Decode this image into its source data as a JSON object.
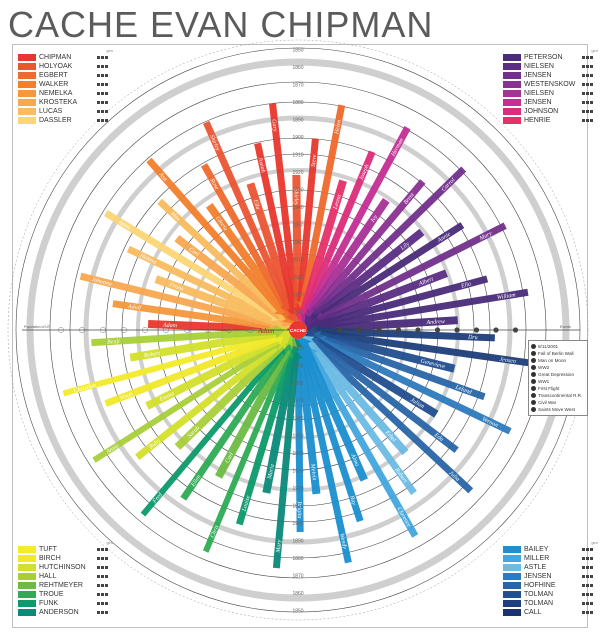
{
  "title": "CACHE EVAN CHIPMAN",
  "center_label": "CACHE",
  "center": {
    "ancestor_1": "Adam",
    "ancestor_2": "Dru"
  },
  "legend_header": "gen",
  "legend_tl": [
    {
      "name": "CHIPMAN",
      "color": "#e8372e"
    },
    {
      "name": "HOLYOAK",
      "color": "#ea5532"
    },
    {
      "name": "EGBERT",
      "color": "#ef6a2e"
    },
    {
      "name": "WALKER",
      "color": "#f37f2d"
    },
    {
      "name": "NEMELKA",
      "color": "#f5973c"
    },
    {
      "name": "KROSTEKA",
      "color": "#f8a851"
    },
    {
      "name": "LUCAS",
      "color": "#f9bc5f"
    },
    {
      "name": "DASSLER",
      "color": "#fcd576"
    }
  ],
  "legend_tr": [
    {
      "name": "PETERSON",
      "color": "#4a2c7a"
    },
    {
      "name": "NIELSEN",
      "color": "#5b2e84"
    },
    {
      "name": "JENSEN",
      "color": "#72318c"
    },
    {
      "name": "WESTENSKOW",
      "color": "#8a3192"
    },
    {
      "name": "NIELSEN",
      "color": "#a83196"
    },
    {
      "name": "JENSEN",
      "color": "#c42f94"
    },
    {
      "name": "JOHNSON",
      "color": "#dc2d7c"
    },
    {
      "name": "HENRIE",
      "color": "#e6306a"
    }
  ],
  "legend_bl": [
    {
      "name": "TUFT",
      "color": "#f4ec2a"
    },
    {
      "name": "BIRCH",
      "color": "#f1e82a"
    },
    {
      "name": "HUTCHINSON",
      "color": "#d3e02b"
    },
    {
      "name": "HALL",
      "color": "#a8cf38"
    },
    {
      "name": "REHTMEYER",
      "color": "#6dbb44"
    },
    {
      "name": "TROUE",
      "color": "#2eab54"
    },
    {
      "name": "FUNK",
      "color": "#0b9a6b"
    },
    {
      "name": "ANDERSON",
      "color": "#0b8a7a"
    }
  ],
  "legend_br": [
    {
      "name": "BAILEY",
      "color": "#1b8fcf"
    },
    {
      "name": "MILLER",
      "color": "#42a7df"
    },
    {
      "name": "ASTLE",
      "color": "#6cbbe4"
    },
    {
      "name": "JENSEN",
      "color": "#2d7bbd"
    },
    {
      "name": "HOFHINE",
      "color": "#2966a8"
    },
    {
      "name": "TOLMAN",
      "color": "#214f8f"
    },
    {
      "name": "TOLMAN",
      "color": "#1e3f7b"
    },
    {
      "name": "CALL",
      "color": "#1d3270"
    }
  ],
  "year_labels": [
    "2000",
    "1990",
    "1980",
    "1970",
    "1960",
    "1950",
    "1940",
    "1930",
    "1920",
    "1910",
    "1900",
    "1890",
    "1880",
    "1870",
    "1860",
    "1850"
  ],
  "axis_left_label": "Population of UT",
  "axis_right_label": "Events",
  "events": [
    {
      "label": "9/11/2001"
    },
    {
      "label": "Fall of Berlin Wall"
    },
    {
      "label": "Man on Moon"
    },
    {
      "label": "WW2"
    },
    {
      "label": "Great Depression"
    },
    {
      "label": "WW1"
    },
    {
      "label": "First Flight"
    },
    {
      "label": "Transcontinental R.R."
    },
    {
      "label": "Civil War"
    },
    {
      "label": "Saints Move West"
    }
  ],
  "people": [
    {
      "name": "Adam",
      "color": "#e8372e"
    },
    {
      "name": "Adolf",
      "color": "#f5973c"
    },
    {
      "name": "Johanna",
      "color": "#f8a851"
    },
    {
      "name": "Frank",
      "color": "#f9bc5f"
    },
    {
      "name": "Helena",
      "color": "#f9bc5f"
    },
    {
      "name": "Anna",
      "color": "#fcd576"
    },
    {
      "name": "Carl",
      "color": "#f8a851"
    },
    {
      "name": "Max",
      "color": "#f9bc5f"
    },
    {
      "name": "Asa",
      "color": "#f37f2d"
    },
    {
      "name": "Gloria",
      "color": "#f37f2d"
    },
    {
      "name": "Rose",
      "color": "#ef6a2e"
    },
    {
      "name": "Shirley",
      "color": "#ea5532"
    },
    {
      "name": "Ella",
      "color": "#ea5532"
    },
    {
      "name": "Josiah",
      "color": "#e8372e"
    },
    {
      "name": "Gary",
      "color": "#e8372e"
    },
    {
      "name": "Shirley",
      "color": "#ea5532"
    },
    {
      "name": "Steve",
      "color": "#e8372e"
    },
    {
      "name": "Helen",
      "color": "#ef6a2e"
    },
    {
      "name": "Leona",
      "color": "#e6306a"
    },
    {
      "name": "Joseph",
      "color": "#dc2d7c"
    },
    {
      "name": "Herman",
      "color": "#c42f94"
    },
    {
      "name": "Ivy",
      "color": "#a83196"
    },
    {
      "name": "Brent",
      "color": "#8a3192"
    },
    {
      "name": "Carrol",
      "color": "#72318c"
    },
    {
      "name": "Lily",
      "color": "#5b2e84"
    },
    {
      "name": "Annie",
      "color": "#4a2c7a"
    },
    {
      "name": "Mary",
      "color": "#72318c"
    },
    {
      "name": "Albert",
      "color": "#5b2e84"
    },
    {
      "name": "Ella",
      "color": "#4a2c7a"
    },
    {
      "name": "William",
      "color": "#4a2c7a"
    },
    {
      "name": "Andrew",
      "color": "#4a2c7a"
    },
    {
      "name": "Dru",
      "color": "#1e3f7b"
    },
    {
      "name": "Jensen",
      "color": "#1e3f7b"
    },
    {
      "name": "Genevieve",
      "color": "#214f8f"
    },
    {
      "name": "Leland",
      "color": "#2966a8"
    },
    {
      "name": "Vernon",
      "color": "#2d7bbd"
    },
    {
      "name": "Julian",
      "color": "#214f8f"
    },
    {
      "name": "Eda",
      "color": "#2966a8"
    },
    {
      "name": "Julia",
      "color": "#2966a8"
    },
    {
      "name": "Ethel",
      "color": "#6cbbe4"
    },
    {
      "name": "Robert",
      "color": "#6cbbe4"
    },
    {
      "name": "Clarence",
      "color": "#42a7df"
    },
    {
      "name": "Alma",
      "color": "#1b8fcf"
    },
    {
      "name": "Ray",
      "color": "#1b8fcf"
    },
    {
      "name": "Wendy",
      "color": "#1b8fcf"
    },
    {
      "name": "Meivin",
      "color": "#1b8fcf"
    },
    {
      "name": "Brigita",
      "color": "#1b8fcf"
    },
    {
      "name": "Mary",
      "color": "#0b8a7a"
    },
    {
      "name": "Maria",
      "color": "#0b8a7a"
    },
    {
      "name": "Louise",
      "color": "#0b9a6b"
    },
    {
      "name": "Chris",
      "color": "#2eab54"
    },
    {
      "name": "Carl",
      "color": "#6dbb44"
    },
    {
      "name": "Ellen",
      "color": "#2eab54"
    },
    {
      "name": "Fred",
      "color": "#0b9a6b"
    },
    {
      "name": "Sarah",
      "color": "#a8cf38"
    },
    {
      "name": "Ruby",
      "color": "#d3e02b"
    },
    {
      "name": "Annie",
      "color": "#a8cf38"
    },
    {
      "name": "Emma",
      "color": "#d3e02b"
    },
    {
      "name": "Vivan",
      "color": "#f1e82a"
    },
    {
      "name": "Christian",
      "color": "#f4ec2a"
    },
    {
      "name": "Robert",
      "color": "#d3e02b"
    },
    {
      "name": "Benji",
      "color": "#a8cf38"
    }
  ]
}
